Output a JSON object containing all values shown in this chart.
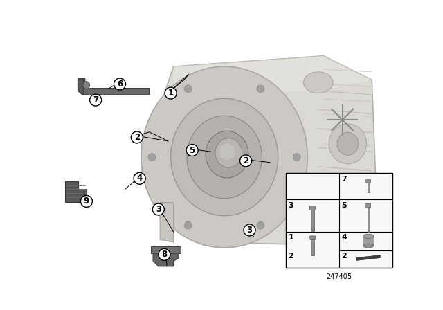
{
  "bg_color": "#ffffff",
  "fig_width": 6.4,
  "fig_height": 4.48,
  "dpi": 100,
  "part_number": "247405",
  "trans_body_color": "#d8d5d0",
  "trans_edge_color": "#b0aca8",
  "bell_color": "#ccc9c4",
  "bell_inner_color": "#b8b5b0",
  "hub_color": "#a8a5a0",
  "shadow_color": "#c0bcb8",
  "bracket_color": "#686868",
  "mount_color": "#585858",
  "part_gray": "#909090",
  "inset_bg": "#ffffff",
  "inset_border": "#000000",
  "callout_bg": "#ffffff",
  "callout_edge": "#000000",
  "line_color": "#000000"
}
